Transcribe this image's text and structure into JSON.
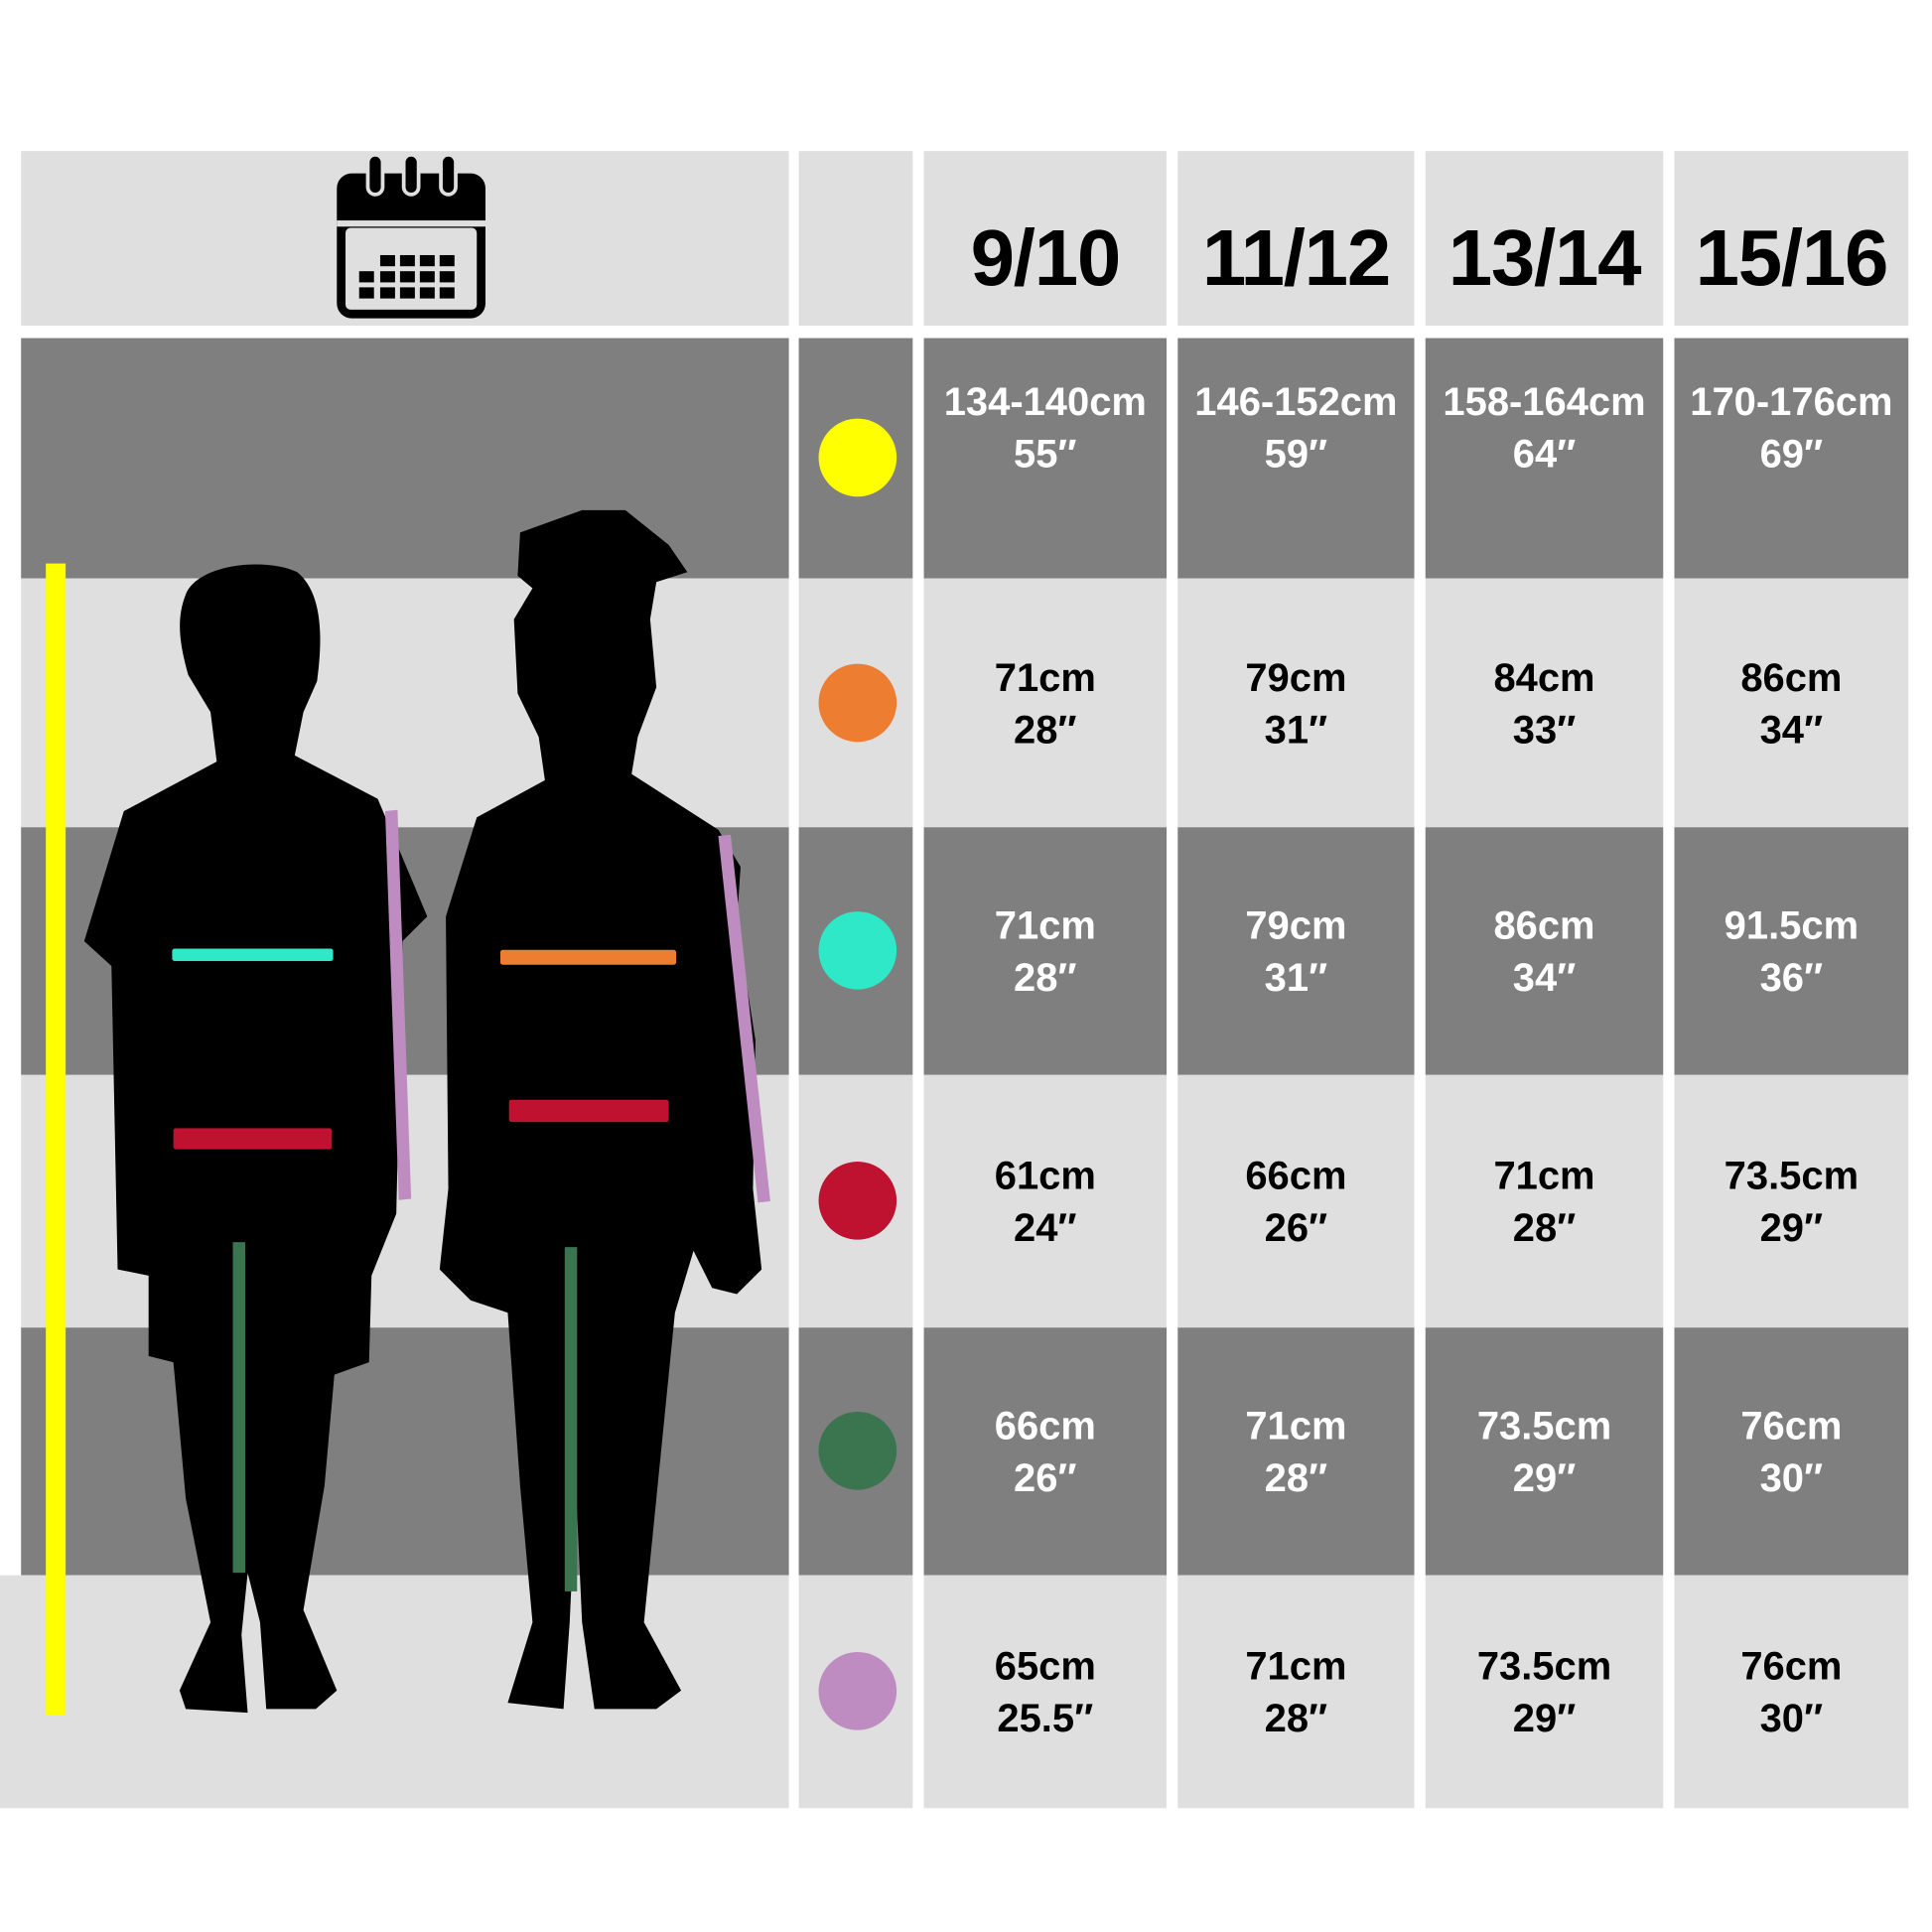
{
  "header": {
    "icon": "calendar-icon",
    "ages": [
      "9/10",
      "11/12",
      "13/14",
      "15/16"
    ]
  },
  "rows": [
    {
      "measure": "height",
      "color": "#ffff00",
      "values": [
        [
          "134-140cm",
          "55″"
        ],
        [
          "146-152cm",
          "59″"
        ],
        [
          "158-164cm",
          "64″"
        ],
        [
          "170-176cm",
          "69″"
        ]
      ]
    },
    {
      "measure": "chest",
      "color": "#ed7d31",
      "values": [
        [
          "71cm",
          "28″"
        ],
        [
          "79cm",
          "31″"
        ],
        [
          "84cm",
          "33″"
        ],
        [
          "86cm",
          "34″"
        ]
      ]
    },
    {
      "measure": "chest-boy",
      "color": "#2ee8c8",
      "values": [
        [
          "71cm",
          "28″"
        ],
        [
          "79cm",
          "31″"
        ],
        [
          "86cm",
          "34″"
        ],
        [
          "91.5cm",
          "36″"
        ]
      ]
    },
    {
      "measure": "waist",
      "color": "#be1230",
      "values": [
        [
          "61cm",
          "24″"
        ],
        [
          "66cm",
          "26″"
        ],
        [
          "71cm",
          "28″"
        ],
        [
          "73.5cm",
          "29″"
        ]
      ]
    },
    {
      "measure": "inside-leg",
      "color": "#3a7550",
      "values": [
        [
          "66cm",
          "26″"
        ],
        [
          "71cm",
          "28″"
        ],
        [
          "73.5cm",
          "29″"
        ],
        [
          "76cm",
          "30″"
        ]
      ]
    },
    {
      "measure": "sleeve",
      "color": "#bf8cc2",
      "values": [
        [
          "65cm",
          "25.5″"
        ],
        [
          "71cm",
          "28″"
        ],
        [
          "73.5cm",
          "29″"
        ],
        [
          "76cm",
          "30″"
        ]
      ]
    }
  ]
}
